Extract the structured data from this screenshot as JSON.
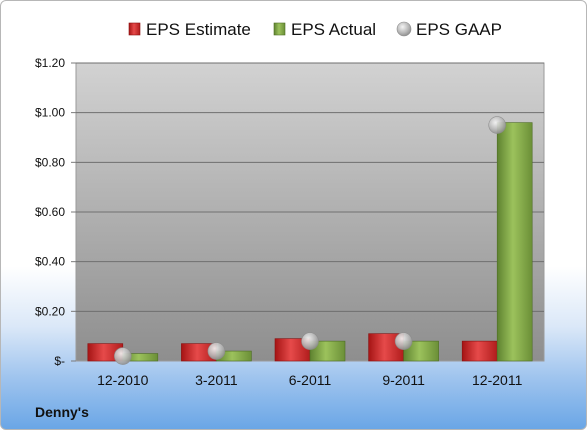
{
  "chart_data": {
    "type": "bar",
    "categories": [
      "12-2010",
      "3-2011",
      "6-2011",
      "9-2011",
      "12-2011"
    ],
    "series": [
      {
        "name": "EPS Estimate",
        "values": [
          0.07,
          0.07,
          0.09,
          0.11,
          0.08
        ],
        "kind": "bar",
        "color": "#d42a2a"
      },
      {
        "name": "EPS Actual",
        "values": [
          0.03,
          0.04,
          0.08,
          0.08,
          0.96
        ],
        "kind": "bar",
        "color": "#7fa544"
      },
      {
        "name": "EPS GAAP",
        "values": [
          0.02,
          0.04,
          0.08,
          0.08,
          0.95
        ],
        "kind": "marker",
        "color": "#b4b4b4"
      }
    ],
    "ylim": [
      0,
      1.2
    ],
    "yticks": [
      {
        "value": 0,
        "label": "$-"
      },
      {
        "value": 0.2,
        "label": "$0.20"
      },
      {
        "value": 0.4,
        "label": "$0.40"
      },
      {
        "value": 0.6,
        "label": "$0.60"
      },
      {
        "value": 0.8,
        "label": "$0.80"
      },
      {
        "value": 1.0,
        "label": "$1.00"
      },
      {
        "value": 1.2,
        "label": "$1.20"
      }
    ],
    "grid": true,
    "legend_position": "top"
  },
  "footer": {
    "company": "Denny's"
  }
}
